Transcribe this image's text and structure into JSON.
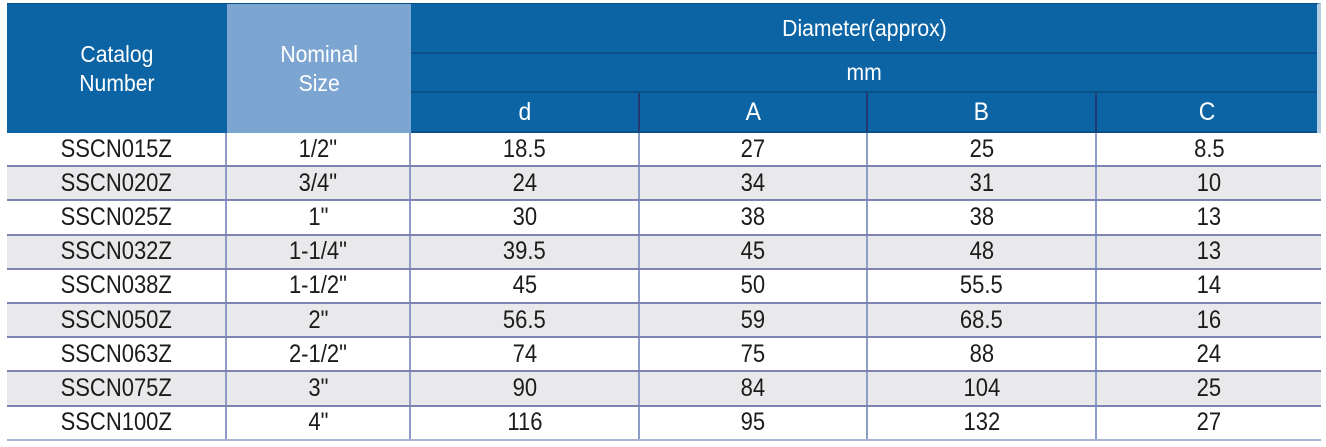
{
  "table": {
    "header": {
      "catalog": "Catalog\nNumber",
      "nominal": "Nominal\nSize",
      "diameter_group": "Diameter(approx)",
      "unit": "mm",
      "columns": [
        "d",
        "A",
        "B",
        "C"
      ]
    },
    "rows": [
      {
        "catalog": "SSCN015Z",
        "nominal": "1/2\"",
        "d": "18.5",
        "A": "27",
        "B": "25",
        "C": "8.5"
      },
      {
        "catalog": "SSCN020Z",
        "nominal": "3/4\"",
        "d": "24",
        "A": "34",
        "B": "31",
        "C": "10"
      },
      {
        "catalog": "SSCN025Z",
        "nominal": "1\"",
        "d": "30",
        "A": "38",
        "B": "38",
        "C": "13"
      },
      {
        "catalog": "SSCN032Z",
        "nominal": "1-1/4\"",
        "d": "39.5",
        "A": "45",
        "B": "48",
        "C": "13"
      },
      {
        "catalog": "SSCN038Z",
        "nominal": "1-1/2\"",
        "d": "45",
        "A": "50",
        "B": "55.5",
        "C": "14"
      },
      {
        "catalog": "SSCN050Z",
        "nominal": "2\"",
        "d": "56.5",
        "A": "59",
        "B": "68.5",
        "C": "16"
      },
      {
        "catalog": "SSCN063Z",
        "nominal": "2-1/2\"",
        "d": "74",
        "A": "75",
        "B": "88",
        "C": "24"
      },
      {
        "catalog": "SSCN075Z",
        "nominal": "3\"",
        "d": "90",
        "A": "84",
        "B": "104",
        "C": "25"
      },
      {
        "catalog": "SSCN100Z",
        "nominal": "4\"",
        "d": "116",
        "A": "95",
        "B": "132",
        "C": "27"
      }
    ],
    "colors": {
      "header_dark_blue": "#0D64A5",
      "header_light_blue": "#7CA5D2",
      "header_divider_blue": "#0B5189",
      "header_column_divider_navy": "#223A6F",
      "row_alt_gray": "#E9E9EB",
      "row_separator": "#7D84B4",
      "column_separator": "#8E9DC8",
      "data_text": "#1B1B1B",
      "header_text": "#FFFFFF"
    }
  }
}
